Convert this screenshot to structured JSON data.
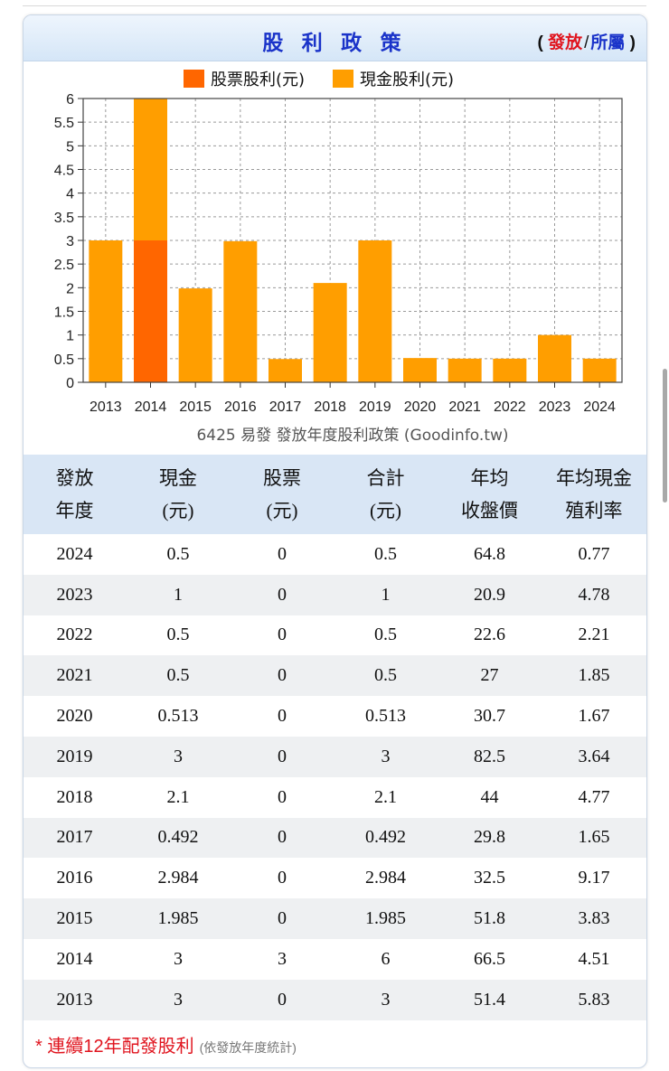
{
  "header": {
    "title": "股 利 政 策",
    "paren_open": "(",
    "link_issue": "發放",
    "slash": "/",
    "link_belong": "所屬",
    "paren_close": ")"
  },
  "chart_data": {
    "type": "bar",
    "stacked": true,
    "categories": [
      "2013",
      "2014",
      "2015",
      "2016",
      "2017",
      "2018",
      "2019",
      "2020",
      "2021",
      "2022",
      "2023",
      "2024"
    ],
    "series": [
      {
        "name": "股票股利(元)",
        "color": "#ff6600",
        "values": [
          0,
          3,
          0,
          0,
          0,
          0,
          0,
          0,
          0,
          0,
          0,
          0
        ]
      },
      {
        "name": "現金股利(元)",
        "color": "#ff9e00",
        "values": [
          3,
          3,
          1.985,
          2.984,
          0.492,
          2.1,
          3,
          0.513,
          0.5,
          0.5,
          1,
          0.5
        ]
      }
    ],
    "ylim": [
      0,
      6
    ],
    "yticks": [
      "0",
      "0.5",
      "1",
      "1.5",
      "2",
      "2.5",
      "3",
      "3.5",
      "4",
      "4.5",
      "5",
      "5.5",
      "6"
    ],
    "grid": true,
    "legend": "top",
    "caption": "6425 易發 發放年度股利政策 (Goodinfo.tw)"
  },
  "table": {
    "headers": [
      {
        "line1": "發放",
        "line2": "年度"
      },
      {
        "line1": "現金",
        "line2": "(元)"
      },
      {
        "line1": "股票",
        "line2": "(元)"
      },
      {
        "line1": "合計",
        "line2": "(元)"
      },
      {
        "line1": "年均",
        "line2": "收盤價"
      },
      {
        "line1": "年均現金",
        "line2": "殖利率"
      }
    ],
    "rows": [
      [
        "2024",
        "0.5",
        "0",
        "0.5",
        "64.8",
        "0.77"
      ],
      [
        "2023",
        "1",
        "0",
        "1",
        "20.9",
        "4.78"
      ],
      [
        "2022",
        "0.5",
        "0",
        "0.5",
        "22.6",
        "2.21"
      ],
      [
        "2021",
        "0.5",
        "0",
        "0.5",
        "27",
        "1.85"
      ],
      [
        "2020",
        "0.513",
        "0",
        "0.513",
        "30.7",
        "1.67"
      ],
      [
        "2019",
        "3",
        "0",
        "3",
        "82.5",
        "3.64"
      ],
      [
        "2018",
        "2.1",
        "0",
        "2.1",
        "44",
        "4.77"
      ],
      [
        "2017",
        "0.492",
        "0",
        "0.492",
        "29.8",
        "1.65"
      ],
      [
        "2016",
        "2.984",
        "0",
        "2.984",
        "32.5",
        "9.17"
      ],
      [
        "2015",
        "1.985",
        "0",
        "1.985",
        "51.8",
        "3.83"
      ],
      [
        "2014",
        "3",
        "3",
        "6",
        "66.5",
        "4.51"
      ],
      [
        "2013",
        "3",
        "0",
        "3",
        "51.4",
        "5.83"
      ]
    ]
  },
  "footnote": {
    "text": "* 連續12年配發股利",
    "note": "(依發放年度統計)"
  }
}
